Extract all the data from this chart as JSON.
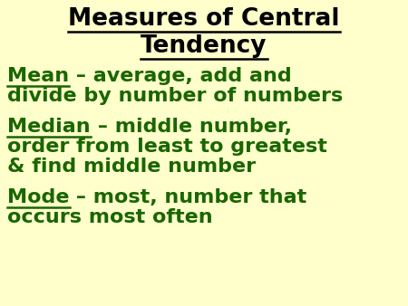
{
  "title_line1": "Measures of Central",
  "title_line2": "Tendency",
  "title_color": "#000000",
  "title_fontsize": 19,
  "background_color": "#FFFFCC",
  "text_color": "#1a6600",
  "body_fontsize": 16,
  "entries": [
    {
      "keyword": "Mean",
      "rest": " – average, add and\ndivide by number of numbers"
    },
    {
      "keyword": "Median",
      "rest": " – middle number,\norder from least to greatest\n& find middle number"
    },
    {
      "keyword": "Mode",
      "rest": " – most, number that\noccurs most often"
    }
  ],
  "fig_width": 4.5,
  "fig_height": 3.38,
  "dpi": 100
}
